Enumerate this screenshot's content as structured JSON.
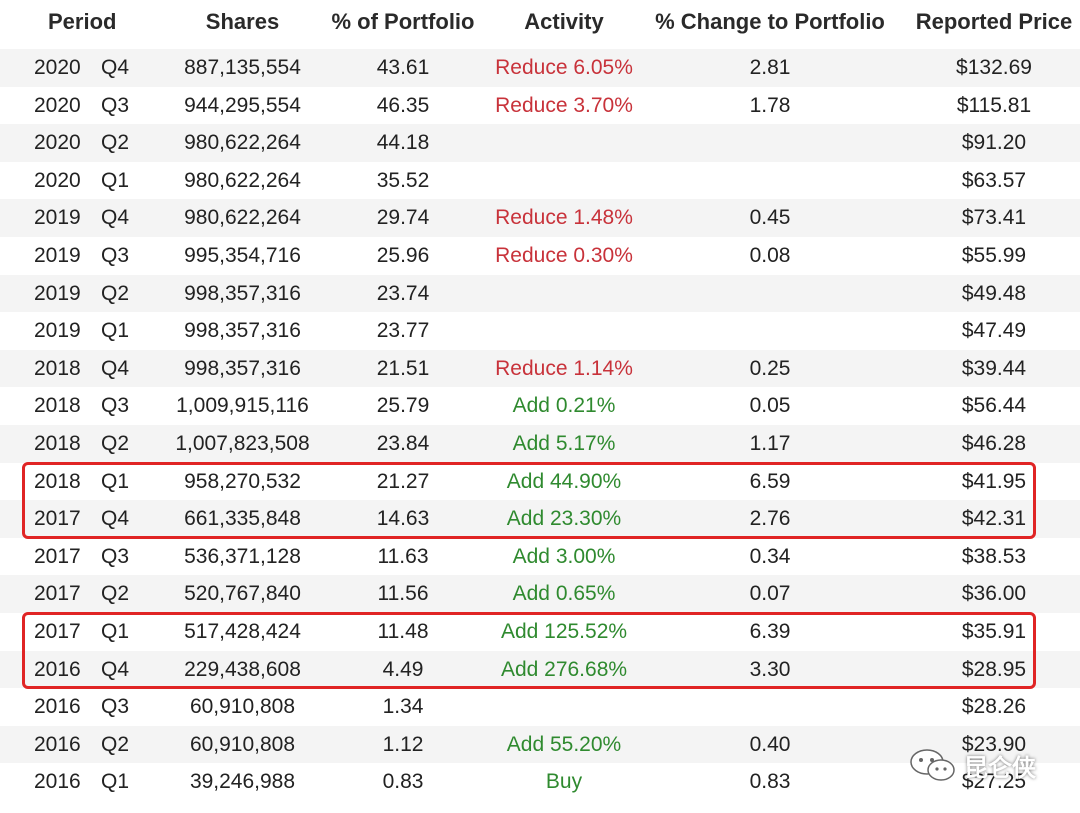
{
  "headers": {
    "period": "Period",
    "shares": "Shares",
    "pct_portfolio": "% of Portfolio",
    "activity": "Activity",
    "pct_change": "% Change to Portfolio",
    "price": "Reported Price"
  },
  "rows": [
    {
      "year": "2020",
      "quarter": "Q4",
      "shares": "887,135,554",
      "pct": "43.61",
      "activity": "Reduce 6.05%",
      "type": "reduce",
      "change": "2.81",
      "price": "$132.69"
    },
    {
      "year": "2020",
      "quarter": "Q3",
      "shares": "944,295,554",
      "pct": "46.35",
      "activity": "Reduce 3.70%",
      "type": "reduce",
      "change": "1.78",
      "price": "$115.81"
    },
    {
      "year": "2020",
      "quarter": "Q2",
      "shares": "980,622,264",
      "pct": "44.18",
      "activity": "",
      "type": "",
      "change": "",
      "price": "$91.20"
    },
    {
      "year": "2020",
      "quarter": "Q1",
      "shares": "980,622,264",
      "pct": "35.52",
      "activity": "",
      "type": "",
      "change": "",
      "price": "$63.57"
    },
    {
      "year": "2019",
      "quarter": "Q4",
      "shares": "980,622,264",
      "pct": "29.74",
      "activity": "Reduce 1.48%",
      "type": "reduce",
      "change": "0.45",
      "price": "$73.41"
    },
    {
      "year": "2019",
      "quarter": "Q3",
      "shares": "995,354,716",
      "pct": "25.96",
      "activity": "Reduce 0.30%",
      "type": "reduce",
      "change": "0.08",
      "price": "$55.99"
    },
    {
      "year": "2019",
      "quarter": "Q2",
      "shares": "998,357,316",
      "pct": "23.74",
      "activity": "",
      "type": "",
      "change": "",
      "price": "$49.48"
    },
    {
      "year": "2019",
      "quarter": "Q1",
      "shares": "998,357,316",
      "pct": "23.77",
      "activity": "",
      "type": "",
      "change": "",
      "price": "$47.49"
    },
    {
      "year": "2018",
      "quarter": "Q4",
      "shares": "998,357,316",
      "pct": "21.51",
      "activity": "Reduce 1.14%",
      "type": "reduce",
      "change": "0.25",
      "price": "$39.44"
    },
    {
      "year": "2018",
      "quarter": "Q3",
      "shares": "1,009,915,116",
      "pct": "25.79",
      "activity": "Add 0.21%",
      "type": "add",
      "change": "0.05",
      "price": "$56.44"
    },
    {
      "year": "2018",
      "quarter": "Q2",
      "shares": "1,007,823,508",
      "pct": "23.84",
      "activity": "Add 5.17%",
      "type": "add",
      "change": "1.17",
      "price": "$46.28"
    },
    {
      "year": "2018",
      "quarter": "Q1",
      "shares": "958,270,532",
      "pct": "21.27",
      "activity": "Add 44.90%",
      "type": "add",
      "change": "6.59",
      "price": "$41.95"
    },
    {
      "year": "2017",
      "quarter": "Q4",
      "shares": "661,335,848",
      "pct": "14.63",
      "activity": "Add 23.30%",
      "type": "add",
      "change": "2.76",
      "price": "$42.31"
    },
    {
      "year": "2017",
      "quarter": "Q3",
      "shares": "536,371,128",
      "pct": "11.63",
      "activity": "Add 3.00%",
      "type": "add",
      "change": "0.34",
      "price": "$38.53"
    },
    {
      "year": "2017",
      "quarter": "Q2",
      "shares": "520,767,840",
      "pct": "11.56",
      "activity": "Add 0.65%",
      "type": "add",
      "change": "0.07",
      "price": "$36.00"
    },
    {
      "year": "2017",
      "quarter": "Q1",
      "shares": "517,428,424",
      "pct": "11.48",
      "activity": "Add 125.52%",
      "type": "add",
      "change": "6.39",
      "price": "$35.91"
    },
    {
      "year": "2016",
      "quarter": "Q4",
      "shares": "229,438,608",
      "pct": "4.49",
      "activity": "Add 276.68%",
      "type": "add",
      "change": "3.30",
      "price": "$28.95"
    },
    {
      "year": "2016",
      "quarter": "Q3",
      "shares": "60,910,808",
      "pct": "1.34",
      "activity": "",
      "type": "",
      "change": "",
      "price": "$28.26"
    },
    {
      "year": "2016",
      "quarter": "Q2",
      "shares": "60,910,808",
      "pct": "1.12",
      "activity": "Add 55.20%",
      "type": "add",
      "change": "0.40",
      "price": "$23.90"
    },
    {
      "year": "2016",
      "quarter": "Q1",
      "shares": "39,246,988",
      "pct": "0.83",
      "activity": "Buy",
      "type": "add",
      "change": "0.83",
      "price": "$27.25"
    }
  ],
  "highlights": [
    {
      "label": "2018 Q1 – 2017 Q4",
      "first_row": 11,
      "last_row": 12
    },
    {
      "label": "2017 Q1 – 2016 Q4",
      "first_row": 15,
      "last_row": 16
    }
  ],
  "colors": {
    "reduce": "#c8323a",
    "add": "#2f8a2f",
    "highlight": "#e02424",
    "stripe": "#f4f4f4"
  },
  "watermark": {
    "icon": "wechat-icon",
    "text": "昆仑侠"
  }
}
